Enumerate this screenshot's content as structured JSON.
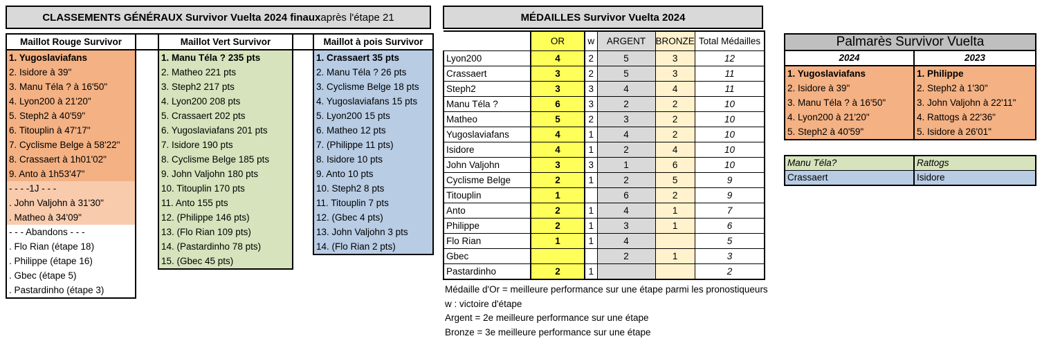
{
  "colors": {
    "banner_gray": "#D9D9D9",
    "palmares_gray": "#BFBFBF",
    "orange": "#F4B183",
    "orange_light": "#F8CBAD",
    "green": "#D6E3BC",
    "blue": "#B8CCE4",
    "gold": "#FFFF5A",
    "silver": "#D9D9D9",
    "bronze": "#FFF2CC"
  },
  "classements": {
    "title_bold": "CLASSEMENTS GÉNÉRAUX Survivor Vuelta 2024 finaux",
    "title_rest": " après l'étape 21",
    "columns": [
      {
        "header": "Maillot Rouge Survivor",
        "rows": [
          {
            "t": "1. Yugoslaviafans",
            "b": 1,
            "bg": "o1"
          },
          {
            "t": "2. Isidore à 39\"",
            "bg": "o1"
          },
          {
            "t": "3. Manu Téla ? à 16'50\"",
            "bg": "o1"
          },
          {
            "t": "4. Lyon200 à 21'20\"",
            "bg": "o1"
          },
          {
            "t": "5. Steph2 à 40'59\"",
            "bg": "o1"
          },
          {
            "t": "6. Titouplin à 47'17\"",
            "bg": "o1"
          },
          {
            "t": "7. Cyclisme Belge à 58'22\"",
            "bg": "o1"
          },
          {
            "t": "8. Crassaert à 1h01'02\"",
            "bg": "o1"
          },
          {
            "t": "9. Anto à 1h53'47\"",
            "bg": "o1"
          },
          {
            "t": "- - - -1J - - -",
            "bg": "o2"
          },
          {
            "t": ". John Valjohn à 31'30\"",
            "bg": "o2"
          },
          {
            "t": ". Matheo à 34'09\"",
            "bg": "o2"
          },
          {
            "t": "- - - Abandons - - -",
            "bg": "w"
          },
          {
            "t": ". Flo Rian (étape 18)",
            "bg": "w"
          },
          {
            "t": ". Philippe (étape 16)",
            "bg": "w"
          },
          {
            "t": ". Gbec (étape 5)",
            "bg": "w"
          },
          {
            "t": ". Pastardinho (étape 3)",
            "bg": "w"
          }
        ]
      },
      {
        "header": "Maillot Vert Survivor",
        "rows": [
          {
            "t": "1. Manu Téla ? 235 pts",
            "b": 1
          },
          {
            "t": "2. Matheo 221 pts"
          },
          {
            "t": "3. Steph2 217 pts"
          },
          {
            "t": "4. Lyon200 208 pts"
          },
          {
            "t": "5. Crassaert 202 pts"
          },
          {
            "t": "6. Yugoslaviafans 201 pts"
          },
          {
            "t": "7. Isidore 190 pts"
          },
          {
            "t": "8. Cyclisme Belge 185 pts"
          },
          {
            "t": "9. John Valjohn 180 pts"
          },
          {
            "t": "10. Titouplin 170 pts"
          },
          {
            "t": "11. Anto 155 pts"
          },
          {
            "t": "12. (Philippe 146 pts)"
          },
          {
            "t": "13. (Flo Rian 109 pts)"
          },
          {
            "t": "14. (Pastardinho 78 pts)"
          },
          {
            "t": "15. (Gbec 45 pts)"
          }
        ]
      },
      {
        "header": "Maillot à pois Survivor",
        "rows": [
          {
            "t": "1. Crassaert 35 pts",
            "b": 1
          },
          {
            "t": "2. Manu Téla ? 26 pts"
          },
          {
            "t": "3. Cyclisme Belge 18 pts"
          },
          {
            "t": "4. Yugoslaviafans 15 pts"
          },
          {
            "t": "5. Lyon200 15 pts"
          },
          {
            "t": "6. Matheo 12 pts"
          },
          {
            "t": "7. (Philippe 11 pts)"
          },
          {
            "t": "8. Isidore 10 pts"
          },
          {
            "t": "9. Anto 10 pts"
          },
          {
            "t": "10. Steph2 8 pts"
          },
          {
            "t": "11. Titouplin 7 pts"
          },
          {
            "t": "12. (Gbec 4 pts)"
          },
          {
            "t": "13. John Valjohn 3 pts"
          },
          {
            "t": "14. (Flo Rian 2 pts)"
          }
        ]
      }
    ]
  },
  "medailles": {
    "title": "MÉDAILLES Survivor Vuelta 2024",
    "headers": {
      "or": "OR",
      "w": "w",
      "argent": "ARGENT",
      "bronze": "BRONZE",
      "total": "Total Médailles"
    },
    "rows": [
      {
        "name": "Lyon200",
        "bold": 1,
        "or": "4",
        "w": "2",
        "argent": "5",
        "bronze": "3",
        "total": "12"
      },
      {
        "name": "Crassaert",
        "or": "3",
        "w": "2",
        "argent": "5",
        "bronze": "3",
        "total": "11"
      },
      {
        "name": "Steph2",
        "or": "3",
        "w": "3",
        "argent": "4",
        "bronze": "4",
        "total": "11"
      },
      {
        "name": "Manu Téla ?",
        "or": "6",
        "w": "3",
        "argent": "2",
        "bronze": "2",
        "total": "10"
      },
      {
        "name": "Matheo",
        "or": "5",
        "w": "2",
        "argent": "3",
        "bronze": "2",
        "total": "10"
      },
      {
        "name": "Yugoslaviafans",
        "or": "4",
        "w": "1",
        "argent": "4",
        "bronze": "2",
        "total": "10"
      },
      {
        "name": "Isidore",
        "or": "4",
        "w": "1",
        "argent": "2",
        "bronze": "4",
        "total": "10"
      },
      {
        "name": "John Valjohn",
        "or": "3",
        "w": "3",
        "argent": "1",
        "bronze": "6",
        "total": "10"
      },
      {
        "name": "Cyclisme Belge",
        "or": "2",
        "w": "1",
        "argent": "2",
        "bronze": "5",
        "total": "9"
      },
      {
        "name": "Titouplin",
        "or": "1",
        "w": "",
        "argent": "6",
        "bronze": "2",
        "total": "9"
      },
      {
        "name": "Anto",
        "or": "2",
        "w": "1",
        "argent": "4",
        "bronze": "1",
        "total": "7"
      },
      {
        "name": "Philippe",
        "or": "2",
        "w": "1",
        "argent": "3",
        "bronze": "1",
        "total": "6"
      },
      {
        "name": "Flo Rian",
        "or": "1",
        "w": "1",
        "argent": "4",
        "bronze": "",
        "total": "5"
      },
      {
        "name": "Gbec",
        "or": "",
        "w": "",
        "argent": "2",
        "bronze": "1",
        "total": "3"
      },
      {
        "name": "Pastardinho",
        "or": "2",
        "w": "1",
        "argent": "",
        "bronze": "",
        "total": "2"
      }
    ]
  },
  "legend": [
    "Médaille d'Or = meilleure performance sur une étape parmi les pronostiqueurs",
    "w : victoire d'étape",
    "Argent = 2e meilleure performance sur une étape",
    "Bronze = 3e meilleure performance sur une étape"
  ],
  "palmares": {
    "title": "Palmarès Survivor Vuelta",
    "year_left": "2024",
    "year_right": "2023",
    "left": [
      {
        "t": "1. Yugoslaviafans",
        "b": 1
      },
      {
        "t": "2. Isidore à 39\""
      },
      {
        "t": "3. Manu Téla ? à 16'50\""
      },
      {
        "t": "4. Lyon200 à 21'20\""
      },
      {
        "t": "5. Steph2 à 40'59\""
      }
    ],
    "right": [
      {
        "t": "1. Philippe",
        "b": 1
      },
      {
        "t": "2. Steph2 à 1'30\""
      },
      {
        "t": "3. John Valjohn à 22'11\""
      },
      {
        "t": "4. Rattogs à 22'36\""
      },
      {
        "t": "5. Isidore à 26'01\""
      }
    ]
  },
  "winners": {
    "green_left": "Manu Téla?",
    "green_right": "Rattogs",
    "blue_left": "Crassaert",
    "blue_right": "Isidore"
  }
}
